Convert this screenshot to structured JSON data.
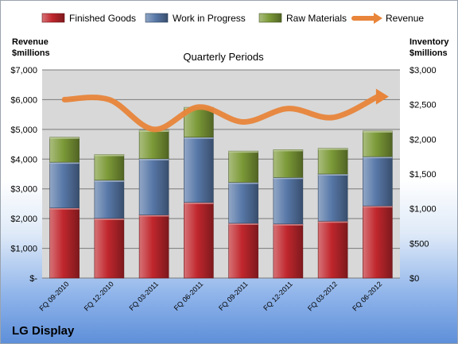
{
  "colors": {
    "finished_goods": "#c0272d",
    "work_in_progress": "#5878a8",
    "raw_materials": "#7c9a38",
    "revenue": "#e8853a",
    "plot_bg": "#d8d8d8"
  },
  "chart_data": {
    "type": "bar",
    "stacked": true,
    "title": "Quarterly Periods",
    "company": "LG Display",
    "categories": [
      "FQ 09-2010",
      "FQ 12-2010",
      "FQ 03-2011",
      "FQ 06-2011",
      "FQ 09-2011",
      "FQ 12-2011",
      "FQ 03-2012",
      "FQ 06-2012"
    ],
    "y_left": {
      "label_line1": "Revenue",
      "label_line2": "$millions",
      "ylim": [
        0,
        7000
      ],
      "ticks": [
        0,
        1000,
        2000,
        3000,
        4000,
        5000,
        6000,
        7000
      ],
      "tick_labels": [
        "$-",
        "$1,000",
        "$2,000",
        "$3,000",
        "$4,000",
        "$5,000",
        "$6,000",
        "$7,000"
      ]
    },
    "y_right": {
      "label_line1": "Inventory",
      "label_line2": "$millions",
      "ylim": [
        0,
        3000
      ],
      "ticks": [
        0,
        500,
        1000,
        1500,
        2000,
        2500,
        3000
      ],
      "tick_labels": [
        "$0",
        "$500",
        "$1,000",
        "$1,500",
        "$2,000",
        "$2,500",
        "$3,000"
      ]
    },
    "series": [
      {
        "name": "Finished Goods",
        "axis": "right",
        "kind": "bar",
        "color_key": "finished_goods",
        "values": [
          1010,
          860,
          910,
          1090,
          790,
          780,
          820,
          1040
        ]
      },
      {
        "name": "Work in Progress",
        "axis": "right",
        "kind": "bar",
        "color_key": "work_in_progress",
        "values": [
          660,
          550,
          810,
          940,
          590,
          670,
          680,
          710
        ]
      },
      {
        "name": "Raw Materials",
        "axis": "right",
        "kind": "bar",
        "color_key": "raw_materials",
        "values": [
          360,
          370,
          410,
          430,
          450,
          400,
          370,
          370
        ]
      },
      {
        "name": "Revenue",
        "axis": "left",
        "kind": "line",
        "color_key": "revenue",
        "values": [
          6000,
          6000,
          5000,
          5750,
          5250,
          5700,
          5400,
          6100
        ]
      }
    ],
    "grid": true,
    "legend": "top"
  }
}
